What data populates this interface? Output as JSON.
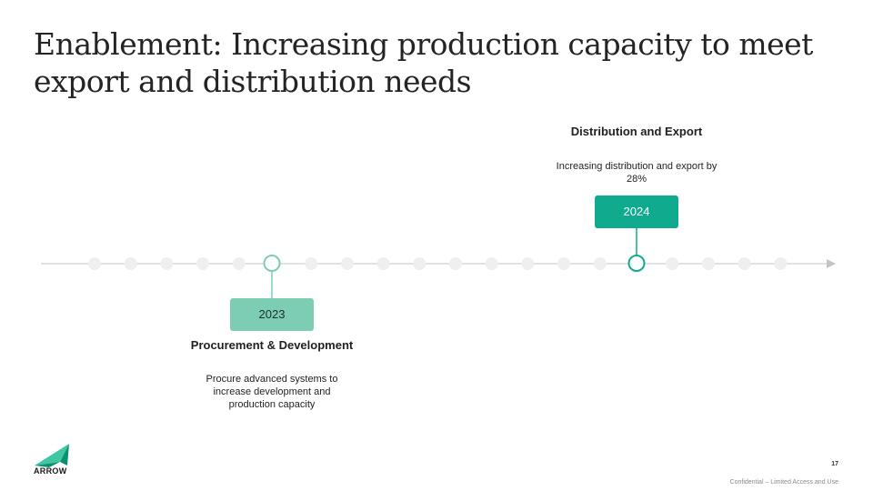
{
  "slide": {
    "title": "Enablement: Increasing production capacity to meet export and distribution needs",
    "page_number": "17",
    "footer": "Confidential – Limited Access and Use"
  },
  "logo": {
    "text": "ARROW",
    "colors": {
      "dark": "#0b8f73",
      "light": "#3fc7a1"
    }
  },
  "colors": {
    "line": "#d8d8d8",
    "dot": "#efefef",
    "marker_2023": "#7dcdb5",
    "marker_2024": "#10ab8f",
    "text": "#1f2022"
  },
  "milestones": [
    {
      "year": "2023",
      "heading": "Procurement & Development",
      "description": "Procure advanced systems to increase development and production capacity",
      "placement": "below"
    },
    {
      "year": "2024",
      "heading": "Distribution and Export",
      "description": "Increasing distribution and export by 28%",
      "placement": "above"
    }
  ]
}
